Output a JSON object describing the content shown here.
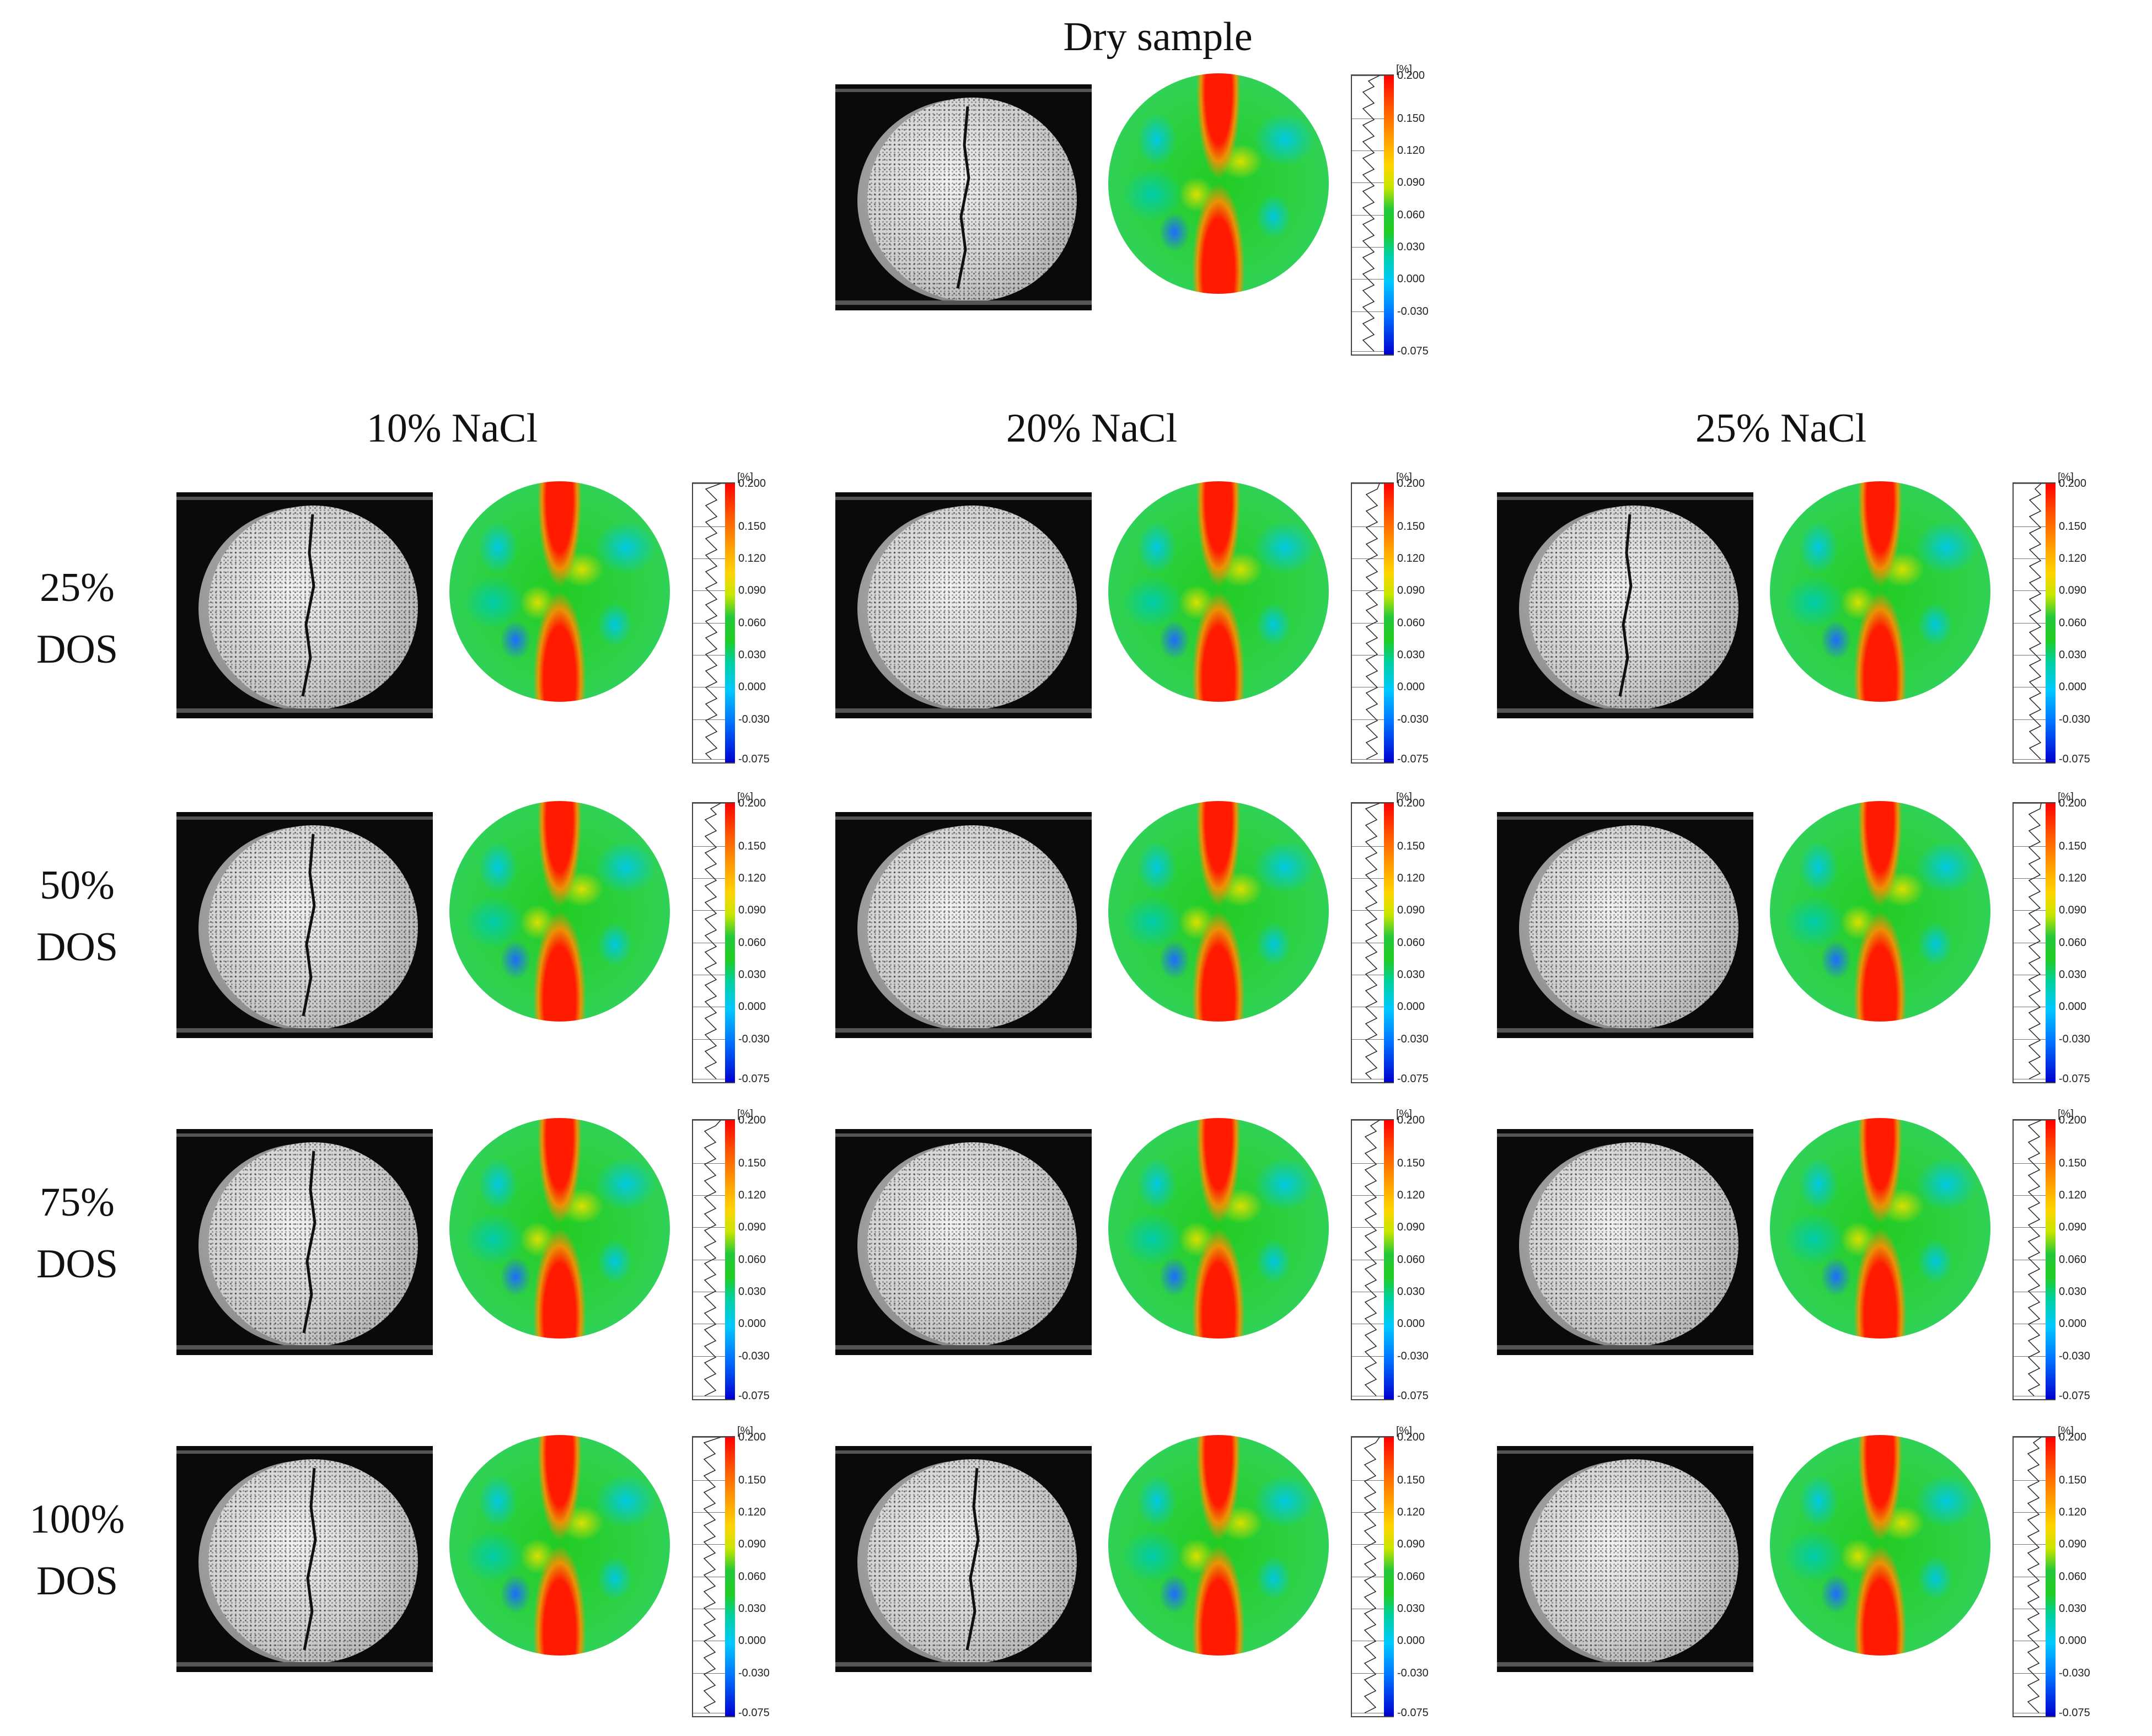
{
  "titles": {
    "dry": "Dry sample",
    "col1": "10% NaCl",
    "col2": "20% NaCl",
    "col3": "25% NaCl"
  },
  "rows": [
    {
      "line1": "25%",
      "line2": "DOS"
    },
    {
      "line1": "50%",
      "line2": "DOS"
    },
    {
      "line1": "75%",
      "line2": "DOS"
    },
    {
      "line1": "100%",
      "line2": "DOS"
    }
  ],
  "colorbar": {
    "unit": "[%]",
    "ticks": [
      "0.200",
      "0.150",
      "0.120",
      "0.090",
      "0.060",
      "0.030",
      "0.000",
      "-0.030",
      "-0.075"
    ]
  }
}
